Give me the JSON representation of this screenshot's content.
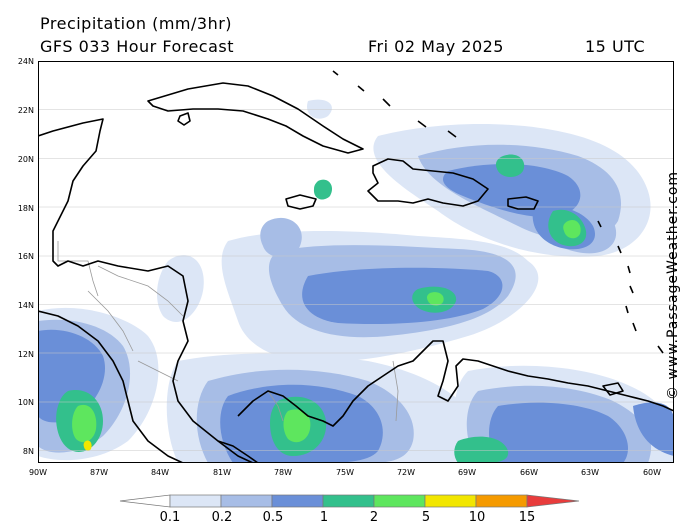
{
  "header": {
    "title": "Precipitation (mm/3hr)",
    "subtitle": "GFS 033 Hour Forecast",
    "date": "Fri 02 May 2025",
    "time": "15 UTC"
  },
  "credit": "© www.PassageWeather.com",
  "map": {
    "lat_labels": [
      "24N",
      "22N",
      "20N",
      "18N",
      "16N",
      "14N",
      "12N",
      "10N",
      "8N"
    ],
    "lon_labels": [
      "90W",
      "87W",
      "84W",
      "81W",
      "78W",
      "75W",
      "72W",
      "69W",
      "66W",
      "63W",
      "60W"
    ],
    "lat_range": [
      7.5,
      24
    ],
    "lon_range": [
      -90,
      -59.5
    ]
  },
  "legend": {
    "labels": [
      "0.1",
      "0.2",
      "0.5",
      "1",
      "2",
      "5",
      "10",
      "15"
    ],
    "colors": [
      "#ffffff",
      "#dce6f6",
      "#a7bde6",
      "#6a8fd8",
      "#33c08c",
      "#5ee65e",
      "#f2e600",
      "#f59a00",
      "#e83c3c"
    ]
  }
}
